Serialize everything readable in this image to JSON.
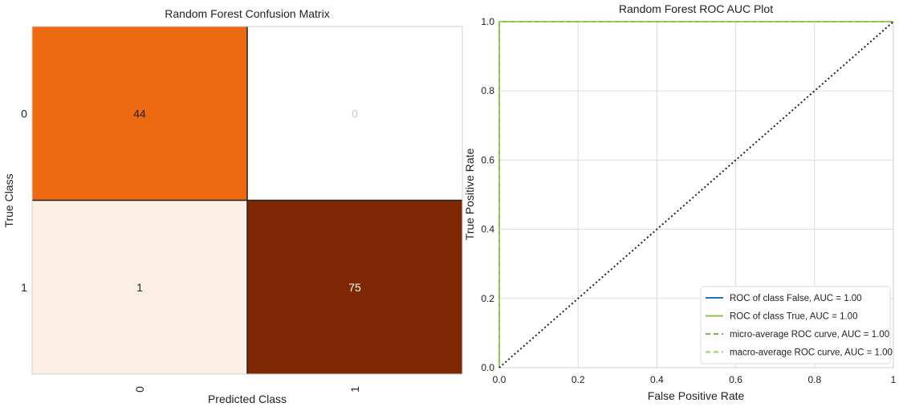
{
  "chart_data": [
    {
      "type": "heatmap",
      "title": "Random Forest Confusion Matrix",
      "xlabel": "Predicted Class",
      "ylabel": "True Class",
      "x_tick_labels": [
        "0",
        "1"
      ],
      "y_tick_labels": [
        "0",
        "1"
      ],
      "matrix": [
        [
          44,
          0
        ],
        [
          1,
          75
        ]
      ],
      "cell_colors": [
        [
          "#ee6a12",
          "#ffffff"
        ],
        [
          "#fcf0e5",
          "#7f2704"
        ]
      ],
      "cell_text_colors": [
        [
          "#222222",
          "#cccccc"
        ],
        [
          "#222222",
          "#ffffff"
        ]
      ]
    },
    {
      "type": "line",
      "title": "Random Forest ROC AUC Plot",
      "xlabel": "False Positive Rate",
      "ylabel": "True Positive Rate",
      "xlim": [
        0,
        1
      ],
      "ylim": [
        0,
        1
      ],
      "x_ticks": [
        "0.0",
        "0.2",
        "0.4",
        "0.6",
        "0.8",
        "1"
      ],
      "y_ticks": [
        "0.0",
        "0.2",
        "0.4",
        "0.6",
        "0.8",
        "1.0"
      ],
      "grid": true,
      "legend_position": "lower-right",
      "series": [
        {
          "name": "ROC of class False, AUC = 1.00",
          "x": [
            0,
            0,
            1
          ],
          "y": [
            0,
            1,
            1
          ],
          "color": "#1f77b4",
          "dash": "solid"
        },
        {
          "name": "ROC of class True, AUC = 1.00",
          "x": [
            0,
            0,
            1
          ],
          "y": [
            0,
            1,
            1
          ],
          "color": "#8bc34a",
          "dash": "solid"
        },
        {
          "name": "micro-average ROC curve, AUC = 1.00",
          "x": [
            0,
            0,
            1
          ],
          "y": [
            0,
            1,
            1
          ],
          "color": "#7cb342",
          "dash": "dashed"
        },
        {
          "name": "macro-average ROC curve, AUC = 1.00",
          "x": [
            0,
            0,
            1
          ],
          "y": [
            0,
            1,
            1
          ],
          "color": "#9ccc65",
          "dash": "dashed"
        }
      ],
      "chance_line": {
        "x": [
          0,
          1
        ],
        "y": [
          0,
          1
        ],
        "color": "#222222",
        "dash": "dotted"
      }
    }
  ]
}
